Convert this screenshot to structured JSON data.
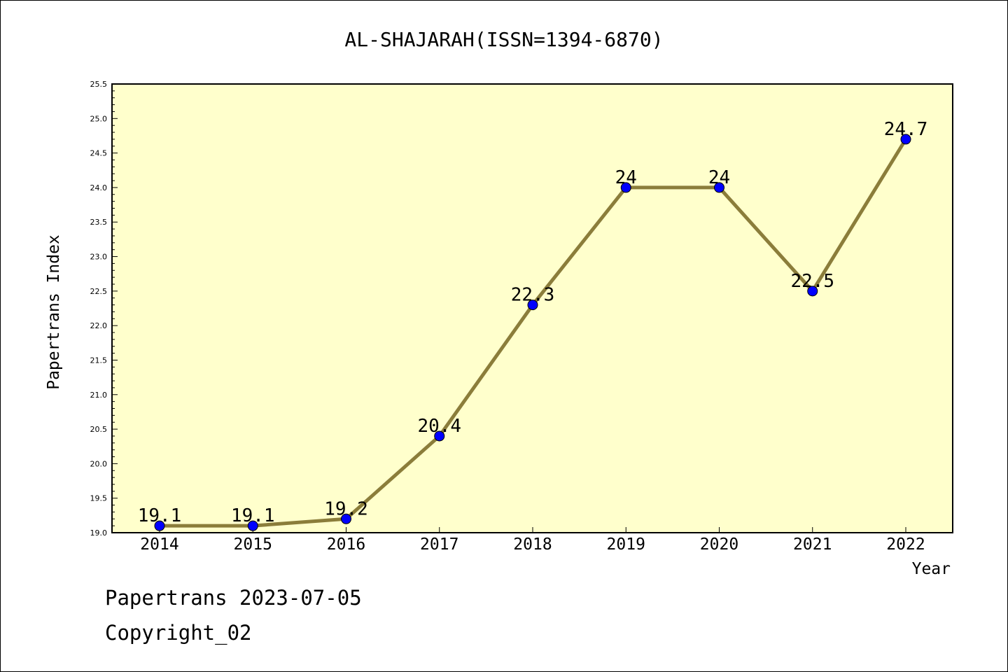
{
  "chart_data": {
    "type": "line",
    "title": "AL-SHAJARAH(ISSN=1394-6870)",
    "xlabel": "Year",
    "ylabel": "Papertrans Index",
    "categories": [
      "2014",
      "2015",
      "2016",
      "2017",
      "2018",
      "2019",
      "2020",
      "2021",
      "2022"
    ],
    "values": [
      19.1,
      19.1,
      19.2,
      20.4,
      22.3,
      24,
      24,
      22.5,
      24.7
    ],
    "data_labels": [
      "19.1",
      "19.1",
      "19.2",
      "20.4",
      "22.3",
      "24",
      "24",
      "22.5",
      "24.7"
    ],
    "ylim": [
      19.0,
      25.5
    ],
    "yticks": [
      "19.0",
      "19.5",
      "20.0",
      "20.5",
      "21.0",
      "21.5",
      "22.0",
      "22.5",
      "23.0",
      "23.5",
      "24.0",
      "24.5",
      "25.0",
      "25.5"
    ],
    "grid": false,
    "legend": "none",
    "colors": {
      "plot_background": "#ffffcc",
      "line": "#8b7d3a",
      "marker": "#0000ff"
    }
  },
  "footer": {
    "line1": "Papertrans 2023-07-05",
    "line2": "Copyright_02"
  }
}
